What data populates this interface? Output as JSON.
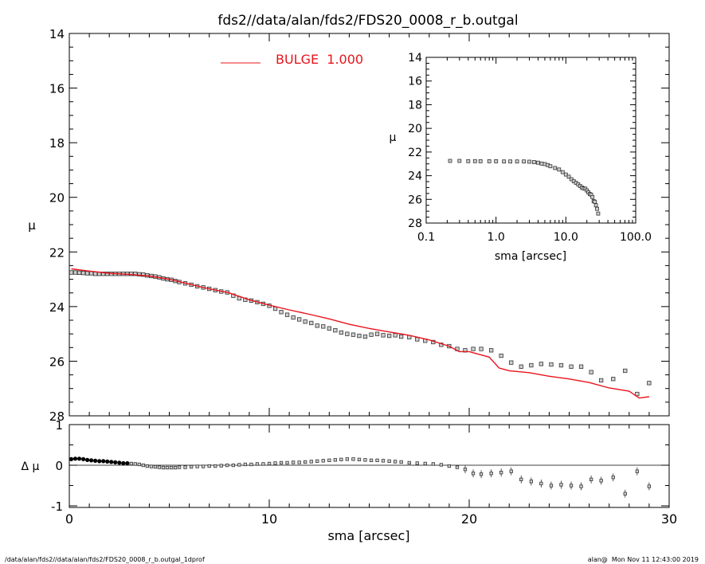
{
  "title": "fds2//data/alan/fds2/FDS20_0008_r_b.outgal",
  "footer_left": "/data/alan/fds2//data/alan/fds2/FDS20_0008_r_b.outgal_1dprof",
  "footer_right": "alan@  Mon Nov 11 12:43:00 2019",
  "colors": {
    "model": "#e8141c",
    "data": "#555555",
    "axis": "#000000"
  },
  "chart_data": [
    {
      "name": "main-profile",
      "type": "scatter",
      "xlabel": "",
      "ylabel": "μ",
      "xlim": [
        0,
        30
      ],
      "ylim": [
        28,
        14
      ],
      "y_inverted": true,
      "yticks": [
        "14",
        "16",
        "18",
        "20",
        "22",
        "24",
        "26",
        "28"
      ],
      "legend": {
        "label": "BULGE  1.000",
        "placement": "top-center",
        "color": "#e8141c"
      },
      "series": [
        {
          "name": "",
          "kind": "points",
          "x": [
            0.1,
            0.3,
            0.5,
            0.7,
            0.9,
            1.1,
            1.3,
            1.5,
            1.7,
            1.9,
            2.1,
            2.3,
            2.5,
            2.7,
            2.9,
            3.1,
            3.3,
            3.5,
            3.7,
            3.9,
            4.1,
            4.3,
            4.5,
            4.7,
            4.9,
            5.1,
            5.3,
            5.5,
            5.8,
            6.1,
            6.4,
            6.7,
            7.0,
            7.3,
            7.6,
            7.9,
            8.2,
            8.5,
            8.8,
            9.1,
            9.4,
            9.7,
            10.0,
            10.3,
            10.6,
            10.9,
            11.2,
            11.5,
            11.8,
            12.1,
            12.4,
            12.7,
            13.0,
            13.3,
            13.6,
            13.9,
            14.2,
            14.5,
            14.8,
            15.1,
            15.4,
            15.7,
            16.0,
            16.3,
            16.6,
            17.0,
            17.4,
            17.8,
            18.2,
            18.6,
            19.0,
            19.4,
            19.8,
            20.2,
            20.6,
            21.1,
            21.6,
            22.1,
            22.6,
            23.1,
            23.6,
            24.1,
            24.6,
            25.1,
            25.6,
            26.1,
            26.6,
            27.2,
            27.8,
            28.4,
            29.0
          ],
          "y": [
            22.75,
            22.75,
            22.76,
            22.77,
            22.78,
            22.78,
            22.8,
            22.8,
            22.8,
            22.8,
            22.8,
            22.8,
            22.8,
            22.8,
            22.8,
            22.8,
            22.8,
            22.82,
            22.83,
            22.86,
            22.88,
            22.9,
            22.93,
            22.97,
            23.0,
            23.02,
            23.06,
            23.1,
            23.15,
            23.2,
            23.26,
            23.3,
            23.35,
            23.4,
            23.45,
            23.48,
            23.6,
            23.7,
            23.75,
            23.78,
            23.84,
            23.9,
            23.97,
            24.08,
            24.2,
            24.3,
            24.4,
            24.47,
            24.55,
            24.6,
            24.7,
            24.73,
            24.8,
            24.87,
            24.95,
            25.0,
            25.03,
            25.07,
            25.1,
            25.03,
            25.0,
            25.05,
            25.07,
            25.05,
            25.1,
            25.12,
            25.2,
            25.25,
            25.3,
            25.4,
            25.45,
            25.55,
            25.6,
            25.55,
            25.55,
            25.6,
            25.8,
            26.05,
            26.2,
            26.15,
            26.1,
            26.12,
            26.15,
            26.2,
            26.2,
            26.4,
            26.7,
            26.65,
            26.35,
            27.2,
            26.8
          ]
        },
        {
          "name": "BULGE  1.000",
          "kind": "line",
          "x": [
            0.1,
            1,
            2,
            3,
            4,
            5,
            6,
            7,
            8,
            9,
            10,
            11,
            12,
            13,
            14,
            15,
            16,
            17,
            18,
            19,
            19.5,
            20,
            21,
            21.5,
            22,
            23,
            24,
            25,
            26,
            27,
            28,
            28.5,
            29
          ],
          "y": [
            22.62,
            22.7,
            22.78,
            22.82,
            22.88,
            23.0,
            23.18,
            23.35,
            23.5,
            23.75,
            23.95,
            24.12,
            24.28,
            24.45,
            24.65,
            24.8,
            24.93,
            25.05,
            25.22,
            25.45,
            25.65,
            25.65,
            25.85,
            26.25,
            26.35,
            26.42,
            26.55,
            26.65,
            26.78,
            26.98,
            27.1,
            27.35,
            27.3
          ]
        }
      ]
    },
    {
      "name": "inset-log-profile",
      "type": "scatter",
      "xlabel": "sma [arcsec]",
      "ylabel": "μ",
      "x_scale": "log",
      "xlim": [
        0.1,
        100
      ],
      "ylim": [
        28,
        14
      ],
      "y_inverted": true,
      "xticks": [
        "0.1",
        "1.0",
        "10.0",
        "100.0"
      ],
      "yticks": [
        "14",
        "16",
        "18",
        "20",
        "22",
        "24",
        "26",
        "28"
      ],
      "series": [
        {
          "name": "",
          "kind": "points",
          "x": [
            0.22,
            0.3,
            0.4,
            0.5,
            0.6,
            0.8,
            1.0,
            1.3,
            1.6,
            2.0,
            2.5,
            3.0,
            3.5,
            4.0,
            4.5,
            5.0,
            5.5,
            6.0,
            7.0,
            8.0,
            9.0,
            10.0,
            11.0,
            12.0,
            13.0,
            14.0,
            15.0,
            16.0,
            17.0,
            18.0,
            19.0,
            20.0,
            21.0,
            22.0,
            23.0,
            24.0,
            25.0,
            26.0,
            27.0,
            28.0,
            29.0
          ],
          "y": [
            22.75,
            22.75,
            22.77,
            22.77,
            22.78,
            22.78,
            22.78,
            22.8,
            22.8,
            22.8,
            22.8,
            22.82,
            22.85,
            22.9,
            22.97,
            23.02,
            23.1,
            23.2,
            23.35,
            23.48,
            23.7,
            23.9,
            24.08,
            24.3,
            24.47,
            24.6,
            24.73,
            24.87,
            25.0,
            25.07,
            25.1,
            25.25,
            25.4,
            25.55,
            25.6,
            25.8,
            26.15,
            26.2,
            26.5,
            26.8,
            27.2
          ]
        }
      ]
    },
    {
      "name": "residual-profile",
      "type": "scatter",
      "xlabel": "sma [arcsec]",
      "ylabel": "Δ μ",
      "xlim": [
        0,
        30
      ],
      "ylim": [
        -1.2,
        1.2
      ],
      "xticks": [
        "0",
        "10",
        "20",
        "30"
      ],
      "yticks": [
        "1",
        "0",
        "-1"
      ],
      "series": [
        {
          "name": "",
          "kind": "points",
          "x": [
            0.1,
            0.3,
            0.5,
            0.7,
            0.9,
            1.1,
            1.3,
            1.5,
            1.7,
            1.9,
            2.1,
            2.3,
            2.5,
            2.7,
            2.9,
            3.1,
            3.3,
            3.5,
            3.7,
            3.9,
            4.1,
            4.3,
            4.5,
            4.7,
            4.9,
            5.1,
            5.3,
            5.5,
            5.8,
            6.1,
            6.4,
            6.7,
            7.0,
            7.3,
            7.6,
            7.9,
            8.2,
            8.5,
            8.8,
            9.1,
            9.4,
            9.7,
            10.0,
            10.3,
            10.6,
            10.9,
            11.2,
            11.5,
            11.8,
            12.1,
            12.4,
            12.7,
            13.0,
            13.3,
            13.6,
            13.9,
            14.2,
            14.5,
            14.8,
            15.1,
            15.4,
            15.7,
            16.0,
            16.3,
            16.6,
            17.0,
            17.4,
            17.8,
            18.2,
            18.6,
            19.0,
            19.4,
            19.8,
            20.2,
            20.6,
            21.1,
            21.6,
            22.1,
            22.6,
            23.1,
            23.6,
            24.1,
            24.6,
            25.1,
            25.6,
            26.1,
            26.6,
            27.2,
            27.8,
            28.4,
            29.0
          ],
          "y": [
            0.15,
            0.16,
            0.16,
            0.15,
            0.13,
            0.12,
            0.11,
            0.1,
            0.1,
            0.09,
            0.08,
            0.07,
            0.06,
            0.05,
            0.05,
            0.04,
            0.03,
            0.02,
            0.0,
            -0.02,
            -0.03,
            -0.04,
            -0.05,
            -0.06,
            -0.06,
            -0.06,
            -0.06,
            -0.05,
            -0.05,
            -0.04,
            -0.03,
            -0.03,
            -0.02,
            -0.02,
            -0.01,
            0.0,
            0.0,
            0.01,
            0.02,
            0.02,
            0.03,
            0.03,
            0.04,
            0.05,
            0.06,
            0.06,
            0.07,
            0.07,
            0.08,
            0.09,
            0.1,
            0.11,
            0.12,
            0.13,
            0.14,
            0.15,
            0.15,
            0.14,
            0.13,
            0.12,
            0.12,
            0.11,
            0.1,
            0.09,
            0.08,
            0.06,
            0.05,
            0.04,
            0.03,
            0.01,
            -0.02,
            -0.05,
            -0.1,
            -0.2,
            -0.22,
            -0.2,
            -0.18,
            -0.15,
            -0.35,
            -0.4,
            -0.45,
            -0.5,
            -0.48,
            -0.5,
            -0.52,
            -0.35,
            -0.38,
            -0.3,
            -0.7,
            -0.15,
            -0.52
          ]
        }
      ]
    }
  ]
}
